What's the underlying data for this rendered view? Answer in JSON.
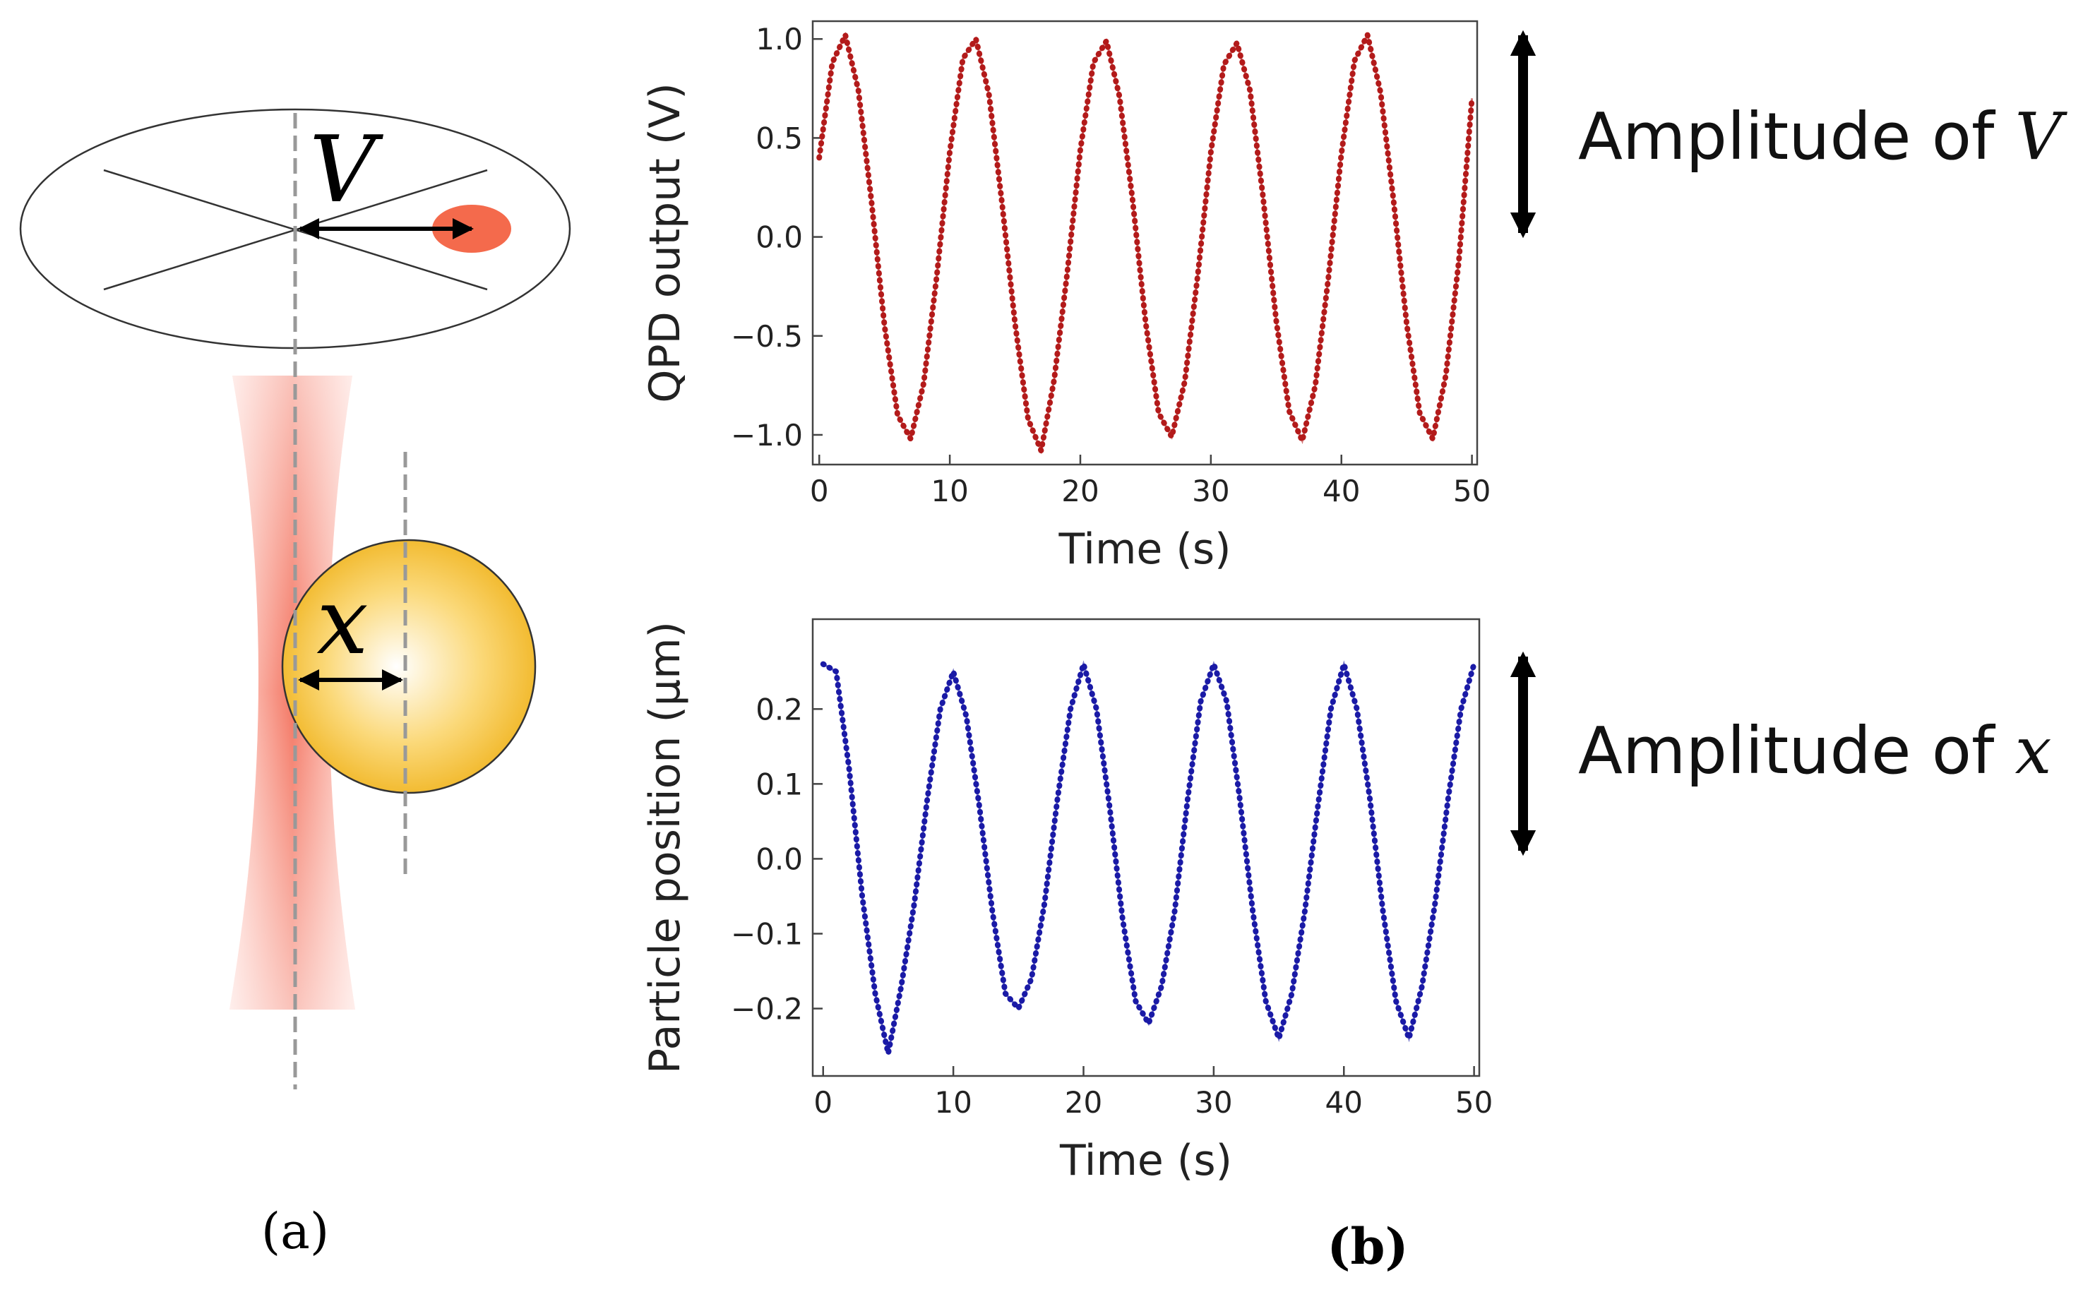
{
  "chart_data": [
    {
      "type": "line",
      "ylabel": "QPD output (V)",
      "xlabel": "Time (s)",
      "x": [
        0,
        1,
        2,
        3,
        4,
        5,
        6,
        7,
        8,
        9,
        10,
        11,
        12,
        13,
        14,
        15,
        16,
        17,
        18,
        19,
        20,
        21,
        22,
        23,
        24,
        25,
        26,
        27,
        28,
        29,
        30,
        31,
        32,
        33,
        34,
        35,
        36,
        37,
        38,
        39,
        40,
        41,
        42,
        43,
        44,
        45,
        46,
        47,
        48,
        49,
        50
      ],
      "series": [
        {
          "color": "#b31b1b",
          "values": [
            0.4,
            0.88,
            1.02,
            0.74,
            0.18,
            -0.45,
            -0.9,
            -1.02,
            -0.74,
            -0.2,
            0.43,
            0.9,
            1.0,
            0.72,
            0.17,
            -0.44,
            -0.92,
            -1.08,
            -0.72,
            -0.18,
            0.44,
            0.88,
            0.99,
            0.71,
            0.19,
            -0.43,
            -0.89,
            -1.01,
            -0.73,
            -0.19,
            0.43,
            0.87,
            0.98,
            0.74,
            0.2,
            -0.42,
            -0.88,
            -1.03,
            -0.75,
            -0.21,
            0.42,
            0.89,
            1.02,
            0.73,
            0.18,
            -0.44,
            -0.89,
            -1.02,
            -0.7,
            -0.12,
            0.7
          ]
        }
      ],
      "xlim": [
        -0.5,
        50.4
      ],
      "ylim": [
        -1.15,
        1.09
      ],
      "xticks": [
        0,
        10,
        20,
        30,
        40,
        50
      ],
      "yticks": [
        {
          "value": -1,
          "label": "−1.0"
        },
        {
          "value": -0.5,
          "label": "−0.5"
        },
        {
          "value": 0,
          "label": "0.0"
        },
        {
          "value": 0.5,
          "label": "0.5"
        },
        {
          "value": 1,
          "label": "1.0"
        }
      ]
    },
    {
      "type": "line",
      "ylabel": "Particle position (μm)",
      "xlabel": "Time (s)",
      "x": [
        0,
        1,
        2,
        3,
        4,
        5,
        6,
        7,
        8,
        9,
        10,
        11,
        12,
        13,
        14,
        15,
        16,
        17,
        18,
        19,
        20,
        21,
        22,
        23,
        24,
        25,
        26,
        27,
        28,
        29,
        30,
        31,
        32,
        33,
        34,
        35,
        36,
        37,
        38,
        39,
        40,
        41,
        42,
        43,
        44,
        45,
        46,
        47,
        48,
        49,
        50
      ],
      "series": [
        {
          "color": "#1a1aa6",
          "values": [
            0.26,
            0.25,
            0.12,
            -0.05,
            -0.18,
            -0.26,
            -0.17,
            -0.06,
            0.08,
            0.2,
            0.25,
            0.19,
            0.07,
            -0.07,
            -0.18,
            -0.2,
            -0.16,
            -0.06,
            0.08,
            0.2,
            0.26,
            0.2,
            0.07,
            -0.08,
            -0.19,
            -0.22,
            -0.17,
            -0.07,
            0.08,
            0.21,
            0.26,
            0.21,
            0.08,
            -0.07,
            -0.19,
            -0.24,
            -0.18,
            -0.07,
            0.07,
            0.2,
            0.26,
            0.2,
            0.08,
            -0.07,
            -0.19,
            -0.24,
            -0.17,
            -0.06,
            0.08,
            0.2,
            0.26
          ]
        }
      ],
      "xlim": [
        -0.8,
        50.4
      ],
      "ylim": [
        -0.29,
        0.32
      ],
      "xticks": [
        0,
        10,
        20,
        30,
        40,
        50
      ],
      "yticks": [
        {
          "value": -0.2,
          "label": "−0.2"
        },
        {
          "value": -0.1,
          "label": "−0.1"
        },
        {
          "value": 0,
          "label": "0.0"
        },
        0.1,
        0.2
      ]
    }
  ],
  "diagram": {
    "v_symbol": "V",
    "x_symbol": "x",
    "panel_a": "(a)",
    "panel_b": "(b)"
  },
  "amplitude_labels": [
    {
      "text": "Amplitude of",
      "symbol": "V"
    },
    {
      "text": "Amplitude of",
      "symbol": "x"
    }
  ]
}
